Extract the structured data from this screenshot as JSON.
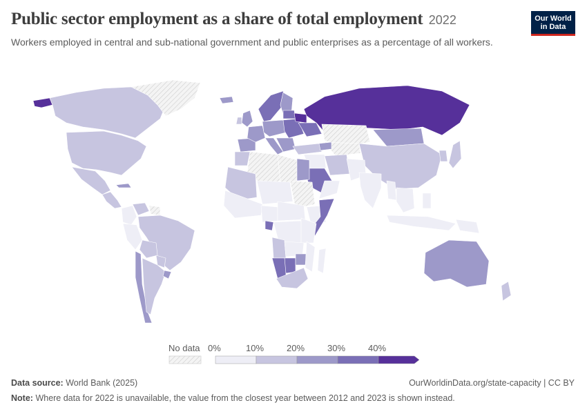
{
  "header": {
    "title": "Public sector employment as a share of total employment",
    "year": "2022",
    "subtitle": "Workers employed in central and sub-national government and public enterprises as a percentage of all workers."
  },
  "logo": {
    "line1": "Our World",
    "line2": "in Data"
  },
  "legend": {
    "no_data_label": "No data",
    "ticks": [
      "0%",
      "10%",
      "20%",
      "30%",
      "40%"
    ],
    "bins": [
      {
        "range": "0-10%",
        "color": "#eeeef6"
      },
      {
        "range": "10-20%",
        "color": "#c7c5e0"
      },
      {
        "range": "20-30%",
        "color": "#9d99c9"
      },
      {
        "range": "30-40%",
        "color": "#7a6fb6"
      },
      {
        "range": ">40%",
        "color": "#56309a"
      }
    ],
    "no_data_color": "#e6e6e6"
  },
  "footer": {
    "source_label": "Data source:",
    "source_text": "World Bank (2025)",
    "url_text": "OurWorldinData.org/state-capacity | CC BY",
    "note_label": "Note:",
    "note_text": "Where data for 2022 is unavailable, the value from the closest year between 2012 and 2023 is shown instead."
  },
  "map": {
    "regions": [
      {
        "name": "Alaska",
        "bin": 4
      },
      {
        "name": "Canada",
        "bin": 1
      },
      {
        "name": "Greenland",
        "bin": -1
      },
      {
        "name": "United States",
        "bin": 1
      },
      {
        "name": "Mexico",
        "bin": 1
      },
      {
        "name": "Cuba",
        "bin": 2
      },
      {
        "name": "Central America",
        "bin": 1
      },
      {
        "name": "Colombia",
        "bin": 0
      },
      {
        "name": "Venezuela",
        "bin": 1
      },
      {
        "name": "Guianas",
        "bin": -1
      },
      {
        "name": "Brazil",
        "bin": 1
      },
      {
        "name": "Peru",
        "bin": 0
      },
      {
        "name": "Bolivia",
        "bin": 1
      },
      {
        "name": "Paraguay",
        "bin": 1
      },
      {
        "name": "Chile",
        "bin": 2
      },
      {
        "name": "Argentina",
        "bin": 1
      },
      {
        "name": "Uruguay",
        "bin": 2
      },
      {
        "name": "Iceland",
        "bin": 2
      },
      {
        "name": "Scandinavia",
        "bin": 3
      },
      {
        "name": "Finland",
        "bin": 2
      },
      {
        "name": "UK",
        "bin": 2
      },
      {
        "name": "Ireland",
        "bin": 1
      },
      {
        "name": "Iberia",
        "bin": 2
      },
      {
        "name": "France",
        "bin": 2
      },
      {
        "name": "Central Europe",
        "bin": 2
      },
      {
        "name": "Eastern Europe",
        "bin": 3
      },
      {
        "name": "Baltics",
        "bin": 3
      },
      {
        "name": "Belarus",
        "bin": 4
      },
      {
        "name": "Ukraine",
        "bin": 3
      },
      {
        "name": "Italy",
        "bin": 2
      },
      {
        "name": "Balkans",
        "bin": 2
      },
      {
        "name": "Turkey",
        "bin": 1
      },
      {
        "name": "Russia",
        "bin": 4
      },
      {
        "name": "Kazakhstan",
        "bin": -1
      },
      {
        "name": "Central Asia",
        "bin": -1
      },
      {
        "name": "Mongolia",
        "bin": 2
      },
      {
        "name": "China",
        "bin": 1
      },
      {
        "name": "Korea",
        "bin": 1
      },
      {
        "name": "Japan",
        "bin": 1
      },
      {
        "name": "Caucasus",
        "bin": 2
      },
      {
        "name": "Iran",
        "bin": 1
      },
      {
        "name": "Iraq Syria",
        "bin": 0
      },
      {
        "name": "Saudi Arabia",
        "bin": 3
      },
      {
        "name": "Oman Yemen",
        "bin": 0
      },
      {
        "name": "Afghanistan Pakistan",
        "bin": 0
      },
      {
        "name": "India",
        "bin": 0
      },
      {
        "name": "Myanmar",
        "bin": 0
      },
      {
        "name": "Southeast Asia",
        "bin": 0
      },
      {
        "name": "Indonesia",
        "bin": 0
      },
      {
        "name": "Philippines",
        "bin": 0
      },
      {
        "name": "Papua New Guinea",
        "bin": 0
      },
      {
        "name": "Australia",
        "bin": 2
      },
      {
        "name": "New Zealand",
        "bin": 1
      },
      {
        "name": "Morocco",
        "bin": 1
      },
      {
        "name": "Algeria",
        "bin": -1
      },
      {
        "name": "Libya",
        "bin": -1
      },
      {
        "name": "Egypt",
        "bin": 2
      },
      {
        "name": "Mauritania Mali",
        "bin": 1
      },
      {
        "name": "Niger Chad",
        "bin": 0
      },
      {
        "name": "Sudan",
        "bin": -1
      },
      {
        "name": "Ethiopia",
        "bin": 0
      },
      {
        "name": "Somalia",
        "bin": 3
      },
      {
        "name": "West Africa",
        "bin": 0
      },
      {
        "name": "Nigeria",
        "bin": 0
      },
      {
        "name": "Central Africa",
        "bin": 0
      },
      {
        "name": "Gabon",
        "bin": 3
      },
      {
        "name": "DR Congo",
        "bin": 0
      },
      {
        "name": "East Africa",
        "bin": 0
      },
      {
        "name": "Angola",
        "bin": 1
      },
      {
        "name": "Zambia",
        "bin": 0
      },
      {
        "name": "Namibia",
        "bin": 3
      },
      {
        "name": "Botswana",
        "bin": 3
      },
      {
        "name": "Zimbabwe",
        "bin": 2
      },
      {
        "name": "Mozambique",
        "bin": 0
      },
      {
        "name": "South Africa",
        "bin": 1
      },
      {
        "name": "Madagascar",
        "bin": 0
      }
    ]
  }
}
